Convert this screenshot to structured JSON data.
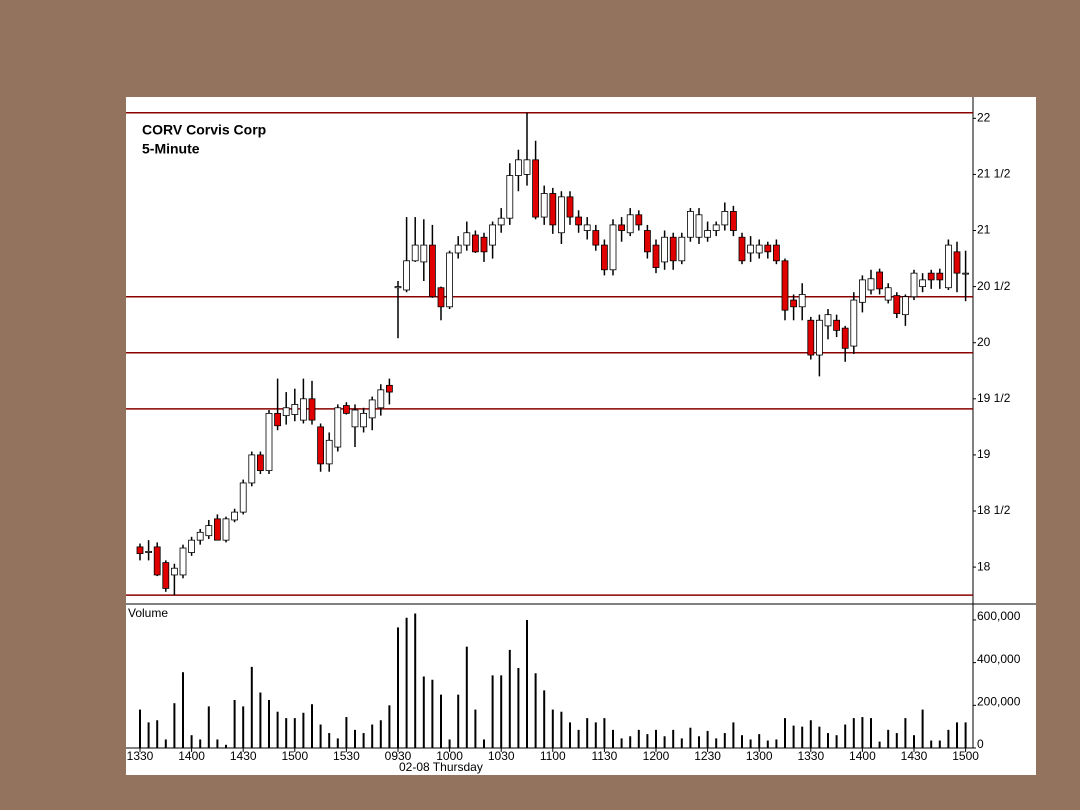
{
  "chart_data": {
    "type": "candlestick",
    "title": "CORV Corvis Corp",
    "subtitle": "5-Minute",
    "date_label": "02-08 Thursday",
    "categories": [
      "1330",
      null,
      null,
      null,
      null,
      null,
      "1400",
      null,
      null,
      null,
      null,
      null,
      "1430",
      null,
      null,
      null,
      null,
      null,
      "1500",
      null,
      null,
      null,
      null,
      null,
      "1530",
      null,
      null,
      null,
      null,
      null,
      "0930",
      null,
      null,
      null,
      null,
      null,
      "1000",
      null,
      null,
      null,
      null,
      null,
      "1030",
      null,
      null,
      null,
      null,
      null,
      "1100",
      null,
      null,
      null,
      null,
      null,
      "1130",
      null,
      null,
      null,
      null,
      null,
      "1200",
      null,
      null,
      null,
      null,
      null,
      "1230",
      null,
      null,
      null,
      null,
      null,
      "1300",
      null,
      null,
      null,
      null,
      null,
      "1330",
      null,
      null,
      null,
      null,
      null,
      "1400",
      null,
      null,
      null,
      null,
      null,
      "1430",
      null,
      null,
      null,
      null,
      null,
      "1500"
    ],
    "open": [
      18.18,
      18.13,
      18.18,
      18.04,
      17.93,
      17.93,
      18.13,
      18.24,
      18.28,
      18.43,
      18.24,
      18.42,
      18.49,
      18.75,
      19.0,
      18.86,
      19.37,
      19.35,
      19.36,
      19.31,
      19.5,
      19.25,
      18.92,
      19.07,
      19.44,
      19.25,
      19.25,
      19.33,
      19.42,
      19.62,
      20.49,
      20.47,
      20.73,
      20.72,
      20.87,
      20.49,
      20.32,
      20.8,
      20.87,
      20.96,
      20.94,
      20.87,
      21.05,
      21.11,
      21.49,
      21.5,
      21.63,
      21.12,
      21.33,
      20.98,
      21.3,
      21.12,
      21.0,
      21.0,
      20.87,
      20.65,
      21.05,
      20.98,
      21.14,
      21.0,
      20.87,
      20.72,
      20.94,
      20.73,
      20.94,
      20.94,
      20.94,
      21.0,
      21.05,
      21.17,
      20.94,
      20.8,
      20.8,
      20.87,
      20.87,
      20.73,
      20.38,
      20.32,
      20.2,
      19.89,
      20.15,
      20.2,
      20.13,
      19.97,
      20.36,
      20.47,
      20.63,
      20.38,
      20.42,
      20.25,
      20.41,
      20.5,
      20.62,
      20.62,
      20.49,
      20.81,
      20.62
    ],
    "high": [
      18.21,
      18.24,
      18.22,
      18.06,
      18.03,
      18.2,
      18.27,
      18.34,
      18.42,
      18.47,
      18.45,
      18.52,
      18.78,
      19.03,
      19.03,
      19.4,
      19.68,
      19.56,
      19.59,
      19.68,
      19.66,
      19.28,
      19.2,
      19.45,
      19.47,
      19.45,
      19.42,
      19.52,
      19.63,
      19.68,
      20.55,
      21.12,
      21.12,
      21.1,
      21.05,
      20.5,
      20.82,
      20.95,
      21.08,
      21.0,
      20.98,
      21.08,
      21.2,
      21.6,
      21.72,
      22.05,
      21.8,
      21.4,
      21.38,
      21.35,
      21.35,
      21.18,
      21.12,
      21.05,
      20.92,
      21.1,
      21.12,
      21.2,
      21.18,
      21.05,
      20.92,
      21.0,
      20.98,
      20.98,
      21.2,
      21.2,
      21.08,
      21.08,
      21.25,
      21.22,
      20.98,
      20.95,
      20.92,
      20.9,
      20.92,
      20.75,
      20.43,
      20.53,
      20.23,
      20.25,
      20.3,
      20.25,
      20.15,
      20.45,
      20.6,
      20.65,
      20.66,
      20.53,
      20.45,
      20.43,
      20.65,
      20.62,
      20.65,
      20.66,
      20.92,
      20.9,
      20.82
    ],
    "low": [
      18.06,
      18.06,
      17.92,
      17.78,
      17.75,
      17.9,
      18.1,
      18.2,
      18.25,
      18.24,
      18.22,
      18.4,
      18.47,
      18.72,
      18.83,
      18.83,
      19.22,
      19.27,
      19.3,
      19.28,
      19.27,
      18.85,
      18.85,
      19.03,
      19.36,
      19.07,
      19.2,
      19.22,
      19.35,
      19.45,
      20.04,
      20.45,
      20.72,
      20.55,
      20.4,
      20.2,
      20.3,
      20.75,
      20.82,
      20.8,
      20.72,
      20.75,
      20.98,
      21.05,
      21.35,
      21.4,
      21.1,
      21.05,
      20.97,
      20.88,
      21.05,
      20.98,
      20.92,
      20.82,
      20.6,
      20.6,
      20.9,
      20.95,
      21.0,
      20.75,
      20.62,
      20.65,
      20.65,
      20.7,
      20.9,
      20.88,
      20.9,
      20.95,
      21.0,
      20.95,
      20.7,
      20.72,
      20.75,
      20.75,
      20.7,
      20.2,
      20.2,
      20.2,
      19.85,
      19.7,
      20.03,
      20.05,
      19.83,
      19.9,
      20.27,
      20.43,
      20.43,
      20.35,
      20.22,
      20.15,
      20.38,
      20.45,
      20.48,
      20.48,
      20.47,
      20.45,
      20.37
    ],
    "close": [
      18.12,
      18.14,
      17.93,
      17.81,
      17.99,
      18.17,
      18.24,
      18.31,
      18.37,
      18.24,
      18.43,
      18.49,
      18.75,
      19.0,
      18.86,
      19.37,
      19.26,
      19.42,
      19.45,
      19.5,
      19.31,
      18.92,
      19.13,
      19.42,
      19.37,
      19.4,
      19.37,
      19.49,
      19.58,
      19.56,
      20.5,
      20.73,
      20.87,
      20.87,
      20.41,
      20.32,
      20.8,
      20.87,
      20.98,
      20.81,
      20.81,
      21.05,
      21.11,
      21.49,
      21.63,
      21.63,
      21.12,
      21.33,
      21.05,
      21.3,
      21.12,
      21.05,
      21.05,
      20.87,
      20.65,
      21.05,
      21.0,
      21.14,
      21.05,
      20.81,
      20.67,
      20.94,
      20.73,
      20.94,
      21.17,
      21.14,
      21.0,
      21.05,
      21.17,
      21.0,
      20.73,
      20.87,
      20.87,
      20.81,
      20.73,
      20.29,
      20.32,
      20.43,
      19.89,
      20.2,
      20.25,
      20.11,
      19.95,
      20.38,
      20.56,
      20.57,
      20.48,
      20.49,
      20.26,
      20.41,
      20.62,
      20.56,
      20.56,
      20.56,
      20.87,
      20.62,
      20.62
    ],
    "up_color": "#ffffff",
    "down_color": "#e00000",
    "ylim": [
      17.68,
      22.19
    ],
    "yticks": [
      18,
      {
        "value": 18.5,
        "label": "18 1/2"
      },
      19,
      {
        "value": 19.5,
        "label": "19 1/2"
      },
      20,
      {
        "value": 20.5,
        "label": "20 1/2"
      },
      21,
      {
        "value": 21.5,
        "label": "21 1/2"
      },
      22
    ],
    "hlines": [
      22.05,
      20.41,
      19.91,
      19.41,
      17.75
    ],
    "hline_color": "#8b0000",
    "volume": {
      "name": "Volume",
      "color": "#000000",
      "values": [
        180000,
        120000,
        130000,
        40000,
        210000,
        355000,
        60000,
        40000,
        195000,
        40000,
        15000,
        225000,
        195000,
        380000,
        260000,
        225000,
        170000,
        140000,
        140000,
        165000,
        205000,
        110000,
        70000,
        45000,
        145000,
        85000,
        70000,
        110000,
        130000,
        200000,
        565000,
        610000,
        630000,
        335000,
        320000,
        250000,
        40000,
        250000,
        475000,
        180000,
        40000,
        340000,
        340000,
        460000,
        375000,
        600000,
        350000,
        270000,
        180000,
        170000,
        120000,
        85000,
        140000,
        120000,
        140000,
        85000,
        45000,
        55000,
        85000,
        65000,
        85000,
        55000,
        85000,
        45000,
        95000,
        55000,
        80000,
        45000,
        70000,
        120000,
        60000,
        40000,
        65000,
        35000,
        40000,
        140000,
        105000,
        100000,
        130000,
        100000,
        70000,
        60000,
        110000,
        140000,
        145000,
        140000,
        30000,
        85000,
        70000,
        140000,
        60000,
        180000,
        35000,
        35000,
        85000,
        120000,
        120000
      ],
      "ylim": [
        0,
        670000
      ],
      "yticks": [
        0,
        {
          "value": 200000,
          "label": "200,000"
        },
        {
          "value": 400000,
          "label": "400,000"
        },
        {
          "value": 600000,
          "label": "600,000"
        }
      ]
    }
  }
}
